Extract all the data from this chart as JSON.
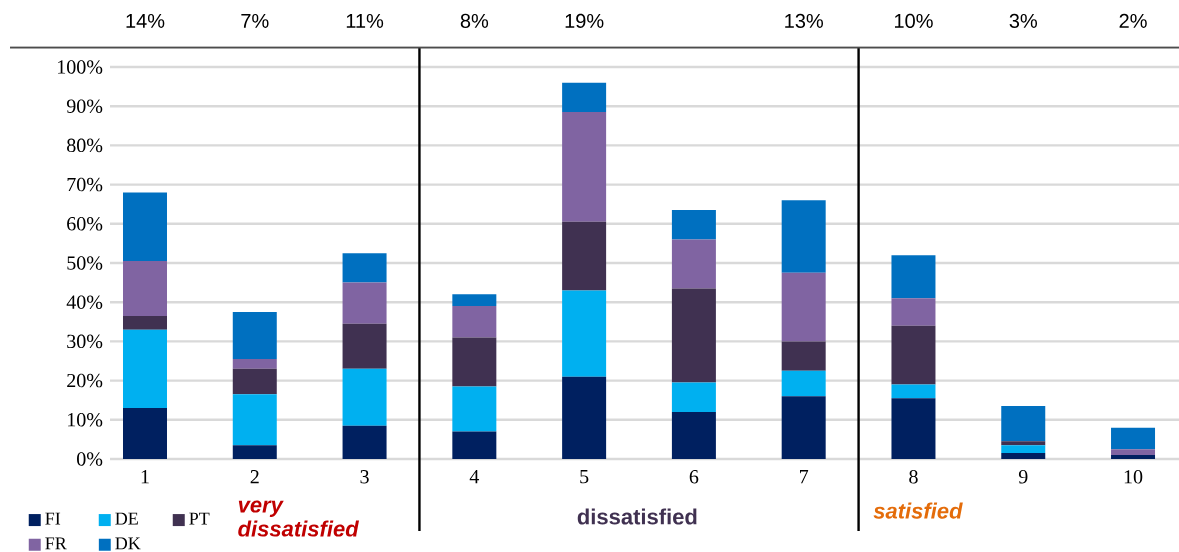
{
  "chart_data": {
    "type": "bar",
    "stacked": true,
    "categories": [
      "1",
      "2",
      "3",
      "4",
      "5",
      "6",
      "7",
      "8",
      "9",
      "10"
    ],
    "series": [
      {
        "name": "FI",
        "color": "#002060",
        "values": [
          13,
          3.5,
          8.5,
          7,
          21,
          12,
          16,
          15.5,
          1.5,
          1
        ]
      },
      {
        "name": "DE",
        "color": "#00B0F0",
        "values": [
          20,
          13,
          14.5,
          11.5,
          22,
          7.5,
          6.5,
          3.5,
          2,
          0
        ]
      },
      {
        "name": "PT",
        "color": "#403151",
        "values": [
          3.5,
          6.5,
          11.5,
          12.5,
          17.5,
          24,
          7.5,
          15,
          1,
          0
        ]
      },
      {
        "name": "FR",
        "color": "#8064A2",
        "values": [
          14,
          2.5,
          10.5,
          8,
          28,
          12.5,
          17.5,
          7,
          0,
          1.5
        ]
      },
      {
        "name": "DK",
        "color": "#0070C0",
        "values": [
          17.5,
          12,
          7.5,
          3,
          7.5,
          7.5,
          18.5,
          11,
          9,
          5.5
        ]
      }
    ],
    "ylim": [
      0,
      105
    ],
    "yticks": [
      {
        "value": 0,
        "label": "0%"
      },
      {
        "value": 10,
        "label": "10%"
      },
      {
        "value": 20,
        "label": "20%"
      },
      {
        "value": 30,
        "label": "30%"
      },
      {
        "value": 40,
        "label": "40%"
      },
      {
        "value": 50,
        "label": "50%"
      },
      {
        "value": 60,
        "label": "60%"
      },
      {
        "value": 70,
        "label": "70%"
      },
      {
        "value": 80,
        "label": "80%"
      },
      {
        "value": 90,
        "label": "90%"
      },
      {
        "value": 100,
        "label": "100%"
      }
    ],
    "grid": "y",
    "legend": "bottom left",
    "annotations": [
      "14%",
      "7%",
      "11%",
      "8%",
      "19%",
      "13%",
      "10%",
      "3%",
      "2%",
      "very dissatisfied",
      "dissatisfied",
      "satisfied"
    ]
  }
}
